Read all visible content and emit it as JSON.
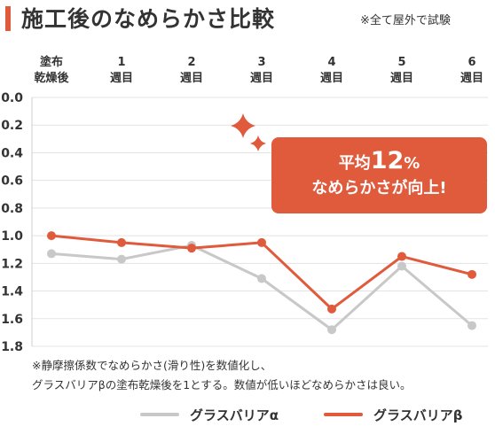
{
  "header": {
    "title": "施工後のなめらかさ比較",
    "note": "※全て屋外で試験"
  },
  "callout": {
    "prefix": "平均",
    "value": "12",
    "unit": "%",
    "line2": "なめらかさが向上!"
  },
  "footnote": {
    "line1": "※静摩擦係数でなめらかさ(滑り性)を数値化し、",
    "line2": "グラスバリアβの塗布乾燥後を1とする。数値が低いほどなめらかさは良い。"
  },
  "colors": {
    "alpha": "#c8c8c8",
    "beta": "#e05a3c",
    "accent": "#e05a3c",
    "sparkle": "#e05a3c"
  },
  "chart_data": {
    "type": "line",
    "categories": [
      [
        "塗布",
        "乾燥後"
      ],
      [
        "1",
        "週目"
      ],
      [
        "2",
        "週目"
      ],
      [
        "3",
        "週目"
      ],
      [
        "4",
        "週目"
      ],
      [
        "5",
        "週目"
      ],
      [
        "6",
        "週目"
      ]
    ],
    "y_ticks": [
      "0.0",
      "0.2",
      "0.4",
      "0.6",
      "0.8",
      "1.0",
      "1.2",
      "1.4",
      "1.6",
      "1.8"
    ],
    "ylim": [
      0,
      1.8
    ],
    "y_inverted": true,
    "grid": true,
    "legend_position": "bottom",
    "series": [
      {
        "name": "グラスバリアα",
        "color": "#c8c8c8",
        "values": [
          1.13,
          1.17,
          1.07,
          1.31,
          1.68,
          1.22,
          1.65
        ]
      },
      {
        "name": "グラスバリアβ",
        "color": "#e05a3c",
        "values": [
          1.0,
          1.05,
          1.09,
          1.05,
          1.53,
          1.15,
          1.28
        ]
      }
    ]
  }
}
